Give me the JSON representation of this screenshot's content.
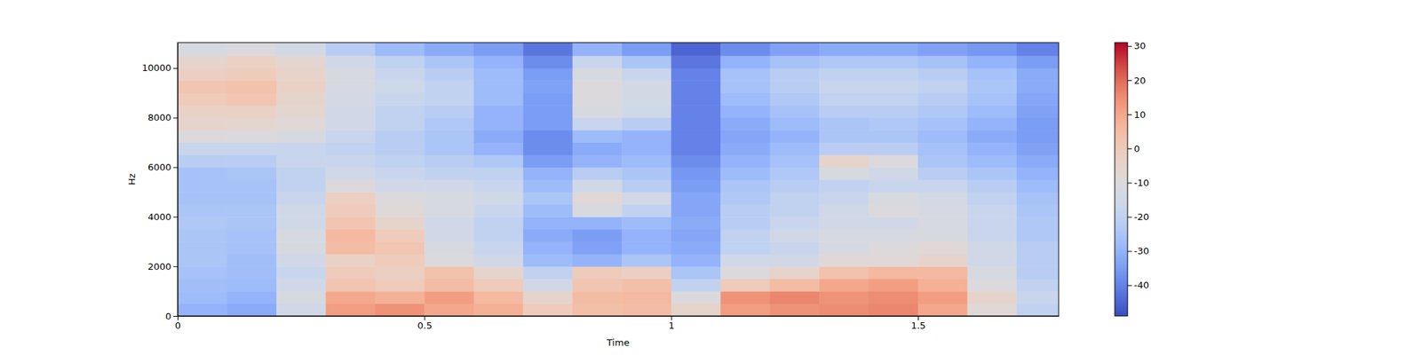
{
  "chart_data": {
    "type": "heatmap",
    "xlabel": "Time",
    "ylabel": "Hz",
    "x": [
      0,
      0.1,
      0.2,
      0.3,
      0.4,
      0.5,
      0.6,
      0.7,
      0.8,
      0.9,
      1.0,
      1.1,
      1.2,
      1.3,
      1.4,
      1.5,
      1.6,
      1.7
    ],
    "y": [
      0,
      500,
      1000,
      1500,
      2000,
      2500,
      3000,
      3500,
      4000,
      4500,
      5000,
      5500,
      6000,
      6500,
      7000,
      7500,
      8000,
      8500,
      9000,
      9500,
      10000,
      10500
    ],
    "z": [
      [
        -30,
        -32,
        -15,
        12,
        14,
        10,
        8,
        0,
        4,
        5,
        -5,
        12,
        14,
        15,
        16,
        10,
        -8,
        -20
      ],
      [
        -28,
        -30,
        -12,
        10,
        8,
        12,
        6,
        -5,
        5,
        6,
        -10,
        14,
        16,
        14,
        15,
        12,
        -5,
        -18
      ],
      [
        -27,
        -28,
        -15,
        2,
        0,
        5,
        0,
        -15,
        2,
        4,
        -20,
        0,
        5,
        10,
        12,
        8,
        -10,
        -20
      ],
      [
        -26,
        -27,
        -18,
        0,
        -2,
        3,
        -5,
        -20,
        0,
        -2,
        -25,
        -10,
        -5,
        3,
        6,
        6,
        -12,
        -22
      ],
      [
        -25,
        -27,
        -15,
        -3,
        0,
        -10,
        -15,
        -28,
        -30,
        -25,
        -30,
        -15,
        -15,
        -8,
        -8,
        -5,
        -15,
        -22
      ],
      [
        -25,
        -26,
        -12,
        5,
        2,
        -12,
        -18,
        -30,
        -34,
        -30,
        -32,
        -20,
        -18,
        -12,
        -10,
        -8,
        -15,
        -22
      ],
      [
        -25,
        -26,
        -12,
        6,
        0,
        -15,
        -20,
        -32,
        -35,
        -30,
        -33,
        -20,
        -15,
        -12,
        -12,
        -12,
        -18,
        -24
      ],
      [
        -24,
        -25,
        -15,
        2,
        -5,
        -15,
        -20,
        -30,
        -30,
        -28,
        -32,
        -22,
        -18,
        -15,
        -15,
        -12,
        -18,
        -24
      ],
      [
        -25,
        -25,
        -15,
        0,
        -8,
        -12,
        -18,
        -28,
        -12,
        -20,
        -33,
        -22,
        -20,
        -15,
        -10,
        -12,
        -18,
        -25
      ],
      [
        -26,
        -26,
        -18,
        -2,
        -10,
        -12,
        -15,
        -25,
        -8,
        -15,
        -33,
        -24,
        -20,
        -18,
        -12,
        -14,
        -20,
        -26
      ],
      [
        -26,
        -26,
        -20,
        -10,
        -15,
        -15,
        -18,
        -28,
        -15,
        -22,
        -35,
        -25,
        -22,
        -20,
        -18,
        -18,
        -22,
        -28
      ],
      [
        -26,
        -25,
        -20,
        -15,
        -18,
        -20,
        -20,
        -30,
        -22,
        -25,
        -36,
        -28,
        -24,
        -12,
        -15,
        -22,
        -25,
        -30
      ],
      [
        -22,
        -22,
        -18,
        -18,
        -20,
        -22,
        -24,
        -35,
        -30,
        -28,
        -38,
        -30,
        -26,
        -5,
        -10,
        -25,
        -28,
        -32
      ],
      [
        -18,
        -18,
        -18,
        -20,
        -22,
        -25,
        -30,
        -38,
        -32,
        -30,
        -40,
        -32,
        -28,
        -22,
        -22,
        -26,
        -30,
        -34
      ],
      [
        -10,
        -10,
        -12,
        -18,
        -22,
        -25,
        -32,
        -38,
        -28,
        -30,
        -40,
        -33,
        -30,
        -25,
        -25,
        -28,
        -32,
        -35
      ],
      [
        -5,
        -6,
        -8,
        -15,
        -20,
        -24,
        -30,
        -35,
        -18,
        -22,
        -40,
        -32,
        -28,
        -25,
        -24,
        -26,
        -30,
        -35
      ],
      [
        -3,
        -3,
        -6,
        -15,
        -20,
        -22,
        -30,
        -35,
        -12,
        -16,
        -40,
        -30,
        -26,
        -22,
        -22,
        -24,
        -28,
        -34
      ],
      [
        0,
        2,
        -5,
        -14,
        -18,
        -20,
        -28,
        -35,
        -10,
        -14,
        -40,
        -28,
        -24,
        -20,
        -20,
        -22,
        -26,
        -33
      ],
      [
        2,
        3,
        -3,
        -12,
        -16,
        -20,
        -28,
        -34,
        -10,
        -14,
        -40,
        -26,
        -22,
        -18,
        -18,
        -20,
        -25,
        -32
      ],
      [
        -2,
        0,
        -4,
        -12,
        -18,
        -22,
        -28,
        -35,
        -12,
        -18,
        -40,
        -26,
        -22,
        -20,
        -20,
        -22,
        -26,
        -32
      ],
      [
        -5,
        -3,
        -6,
        -15,
        -20,
        -25,
        -30,
        -38,
        -18,
        -25,
        -42,
        -30,
        -26,
        -24,
        -24,
        -26,
        -30,
        -35
      ],
      [
        -12,
        -10,
        -14,
        -22,
        -28,
        -32,
        -35,
        -42,
        -30,
        -35,
        -45,
        -38,
        -34,
        -32,
        -32,
        -34,
        -36,
        -40
      ]
    ],
    "xlim": [
      0,
      1.785
    ],
    "ylim": [
      0,
      11025
    ],
    "xticks": [
      0,
      0.5,
      1,
      1.5
    ],
    "yticks": [
      0,
      2000,
      4000,
      6000,
      8000,
      10000
    ],
    "colorbar": {
      "range": [
        -49,
        31
      ],
      "ticks": [
        -40,
        -30,
        -20,
        -10,
        0,
        10,
        20,
        30
      ]
    }
  }
}
